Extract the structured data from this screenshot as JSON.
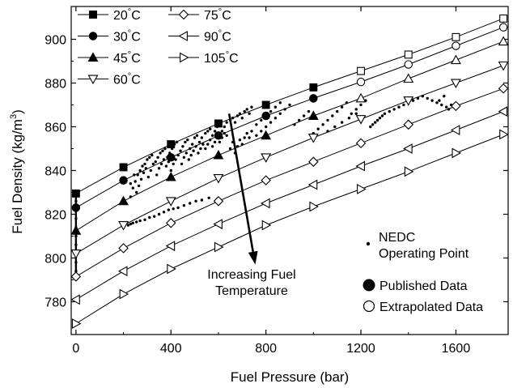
{
  "chart_data": {
    "type": "scatter",
    "xlabel": "Fuel Pressure (bar)",
    "ylabel_main": "Fuel Density (kg/m",
    "ylabel_sup": "3",
    "ylabel_end": ")",
    "xlim": [
      -20,
      1820
    ],
    "ylim": [
      765,
      915
    ],
    "xticks": [
      0,
      400,
      800,
      1200,
      1600
    ],
    "yticks": [
      780,
      800,
      820,
      840,
      860,
      880,
      900
    ],
    "xtick_labels": [
      "0",
      "400",
      "800",
      "1200",
      "1600"
    ],
    "ytick_labels": [
      "780",
      "800",
      "820",
      "840",
      "860",
      "880",
      "900"
    ],
    "legend": [
      {
        "label": "20°C",
        "marker": "square"
      },
      {
        "label": "30°C",
        "marker": "circle"
      },
      {
        "label": "45°C",
        "marker": "triangle-up"
      },
      {
        "label": "60°C",
        "marker": "triangle-down"
      },
      {
        "label": "75°C",
        "marker": "diamond"
      },
      {
        "label": "90°C",
        "marker": "triangle-left"
      },
      {
        "label": "105°C",
        "marker": "triangle-right"
      }
    ],
    "series": [
      {
        "name": "20°C",
        "marker": "square",
        "x": [
          0,
          200,
          400,
          600,
          800,
          1000,
          1200,
          1400,
          1600,
          1800
        ],
        "y": [
          829.5,
          841.5,
          852,
          861.5,
          870,
          878,
          885.5,
          893,
          901,
          909.5
        ],
        "published_until": 1000
      },
      {
        "name": "30°C",
        "marker": "circle",
        "x": [
          0,
          200,
          400,
          600,
          800,
          1000,
          1200,
          1400,
          1600,
          1800
        ],
        "y": [
          823,
          835.5,
          846,
          856,
          865,
          873,
          880.5,
          888.5,
          897,
          905.5
        ],
        "published_until": 1000
      },
      {
        "name": "45°C",
        "marker": "triangle-up",
        "x": [
          0,
          200,
          400,
          600,
          800,
          1000,
          1200,
          1400,
          1600,
          1800
        ],
        "y": [
          812.5,
          826,
          837,
          847,
          856,
          865,
          873,
          882,
          890.5,
          899
        ],
        "published_until": 1000
      },
      {
        "name": "60°C",
        "marker": "triangle-down",
        "x": [
          0,
          200,
          400,
          600,
          800,
          1000,
          1200,
          1400,
          1600,
          1800
        ],
        "y": [
          802,
          815,
          826,
          836.5,
          846,
          855,
          863.5,
          872,
          880,
          888
        ],
        "published_until": 0
      },
      {
        "name": "75°C",
        "marker": "diamond",
        "x": [
          0,
          200,
          400,
          600,
          800,
          1000,
          1200,
          1400,
          1600,
          1800
        ],
        "y": [
          791.5,
          804.5,
          816,
          826,
          835.5,
          844,
          852.5,
          861,
          869.5,
          877.5
        ],
        "published_until": 0
      },
      {
        "name": "90°C",
        "marker": "triangle-left",
        "x": [
          0,
          200,
          400,
          600,
          800,
          1000,
          1200,
          1400,
          1600,
          1800
        ],
        "y": [
          781,
          794,
          805.5,
          815.5,
          825,
          833.5,
          842,
          850,
          858.5,
          867
        ],
        "published_until": 0
      },
      {
        "name": "105°C",
        "marker": "triangle-right",
        "x": [
          0,
          200,
          400,
          600,
          800,
          1000,
          1200,
          1400,
          1600,
          1800
        ],
        "y": [
          770,
          783.5,
          795,
          805,
          815,
          823.5,
          831.5,
          839.5,
          848,
          856.5
        ],
        "published_until": 0
      }
    ],
    "nedc_points": [
      [
        0,
        829
      ],
      [
        0,
        826
      ],
      [
        0,
        822
      ],
      [
        0,
        818
      ],
      [
        0,
        814
      ],
      [
        0,
        810
      ],
      [
        0,
        806
      ],
      [
        0,
        802
      ],
      [
        0,
        798
      ],
      [
        0,
        794
      ],
      [
        0,
        791
      ],
      [
        220,
        815
      ],
      [
        230,
        815.5
      ],
      [
        240,
        816
      ],
      [
        255,
        816.5
      ],
      [
        270,
        817
      ],
      [
        290,
        817.5
      ],
      [
        310,
        818.5
      ],
      [
        330,
        819
      ],
      [
        350,
        820
      ],
      [
        370,
        821
      ],
      [
        390,
        822
      ],
      [
        410,
        822.5
      ],
      [
        430,
        823
      ],
      [
        455,
        824
      ],
      [
        480,
        825
      ],
      [
        505,
        826
      ],
      [
        530,
        826.5
      ],
      [
        560,
        827.5
      ],
      [
        230,
        828
      ],
      [
        240,
        832
      ],
      [
        250,
        835
      ],
      [
        260,
        838
      ],
      [
        270,
        840
      ],
      [
        280,
        842
      ],
      [
        290,
        843
      ],
      [
        300,
        845
      ],
      [
        310,
        846
      ],
      [
        320,
        847
      ],
      [
        230,
        834
      ],
      [
        245,
        838
      ],
      [
        255,
        830
      ],
      [
        265,
        833
      ],
      [
        275,
        836
      ],
      [
        285,
        839
      ],
      [
        295,
        841
      ],
      [
        305,
        837
      ],
      [
        315,
        840
      ],
      [
        325,
        843
      ],
      [
        335,
        844
      ],
      [
        345,
        846
      ],
      [
        355,
        848
      ],
      [
        365,
        849
      ],
      [
        375,
        850
      ],
      [
        385,
        846
      ],
      [
        395,
        848
      ],
      [
        405,
        850
      ],
      [
        415,
        852
      ],
      [
        425,
        853
      ],
      [
        340,
        838
      ],
      [
        350,
        841
      ],
      [
        360,
        843
      ],
      [
        370,
        845
      ],
      [
        380,
        842
      ],
      [
        390,
        844
      ],
      [
        400,
        840
      ],
      [
        410,
        843
      ],
      [
        420,
        845
      ],
      [
        430,
        847
      ],
      [
        440,
        849
      ],
      [
        450,
        851
      ],
      [
        460,
        853
      ],
      [
        470,
        854
      ],
      [
        480,
        850
      ],
      [
        490,
        852
      ],
      [
        500,
        855
      ],
      [
        510,
        856
      ],
      [
        520,
        853
      ],
      [
        530,
        855
      ],
      [
        445,
        843
      ],
      [
        455,
        846
      ],
      [
        465,
        848
      ],
      [
        475,
        845
      ],
      [
        485,
        847
      ],
      [
        495,
        849
      ],
      [
        505,
        851
      ],
      [
        515,
        848
      ],
      [
        525,
        850
      ],
      [
        535,
        852
      ],
      [
        545,
        857
      ],
      [
        555,
        858
      ],
      [
        565,
        859
      ],
      [
        575,
        856
      ],
      [
        585,
        858
      ],
      [
        595,
        860
      ],
      [
        605,
        861
      ],
      [
        615,
        858
      ],
      [
        625,
        860
      ],
      [
        635,
        862
      ],
      [
        545,
        850
      ],
      [
        555,
        852
      ],
      [
        565,
        854
      ],
      [
        575,
        851
      ],
      [
        585,
        853
      ],
      [
        595,
        855
      ],
      [
        605,
        853
      ],
      [
        615,
        855
      ],
      [
        625,
        857
      ],
      [
        635,
        856
      ],
      [
        650,
        863
      ],
      [
        660,
        864
      ],
      [
        670,
        862
      ],
      [
        680,
        865
      ],
      [
        690,
        866
      ],
      [
        700,
        864
      ],
      [
        710,
        867
      ],
      [
        720,
        868
      ],
      [
        730,
        866
      ],
      [
        740,
        869
      ],
      [
        650,
        850
      ],
      [
        660,
        853
      ],
      [
        670,
        848
      ],
      [
        680,
        851
      ],
      [
        690,
        854
      ],
      [
        700,
        852
      ],
      [
        710,
        855
      ],
      [
        720,
        857
      ],
      [
        730,
        855
      ],
      [
        740,
        858
      ],
      [
        760,
        861
      ],
      [
        780,
        863
      ],
      [
        800,
        865
      ],
      [
        820,
        867
      ],
      [
        840,
        869
      ],
      [
        860,
        871
      ],
      [
        760,
        856
      ],
      [
        780,
        858
      ],
      [
        800,
        860
      ],
      [
        820,
        862
      ],
      [
        840,
        864
      ],
      [
        860,
        866
      ],
      [
        880,
        868
      ],
      [
        900,
        870
      ],
      [
        920,
        861
      ],
      [
        940,
        863
      ],
      [
        960,
        865
      ],
      [
        980,
        867
      ],
      [
        1000,
        857
      ],
      [
        1020,
        859
      ],
      [
        1040,
        861
      ],
      [
        1060,
        863
      ],
      [
        1080,
        865
      ],
      [
        1100,
        867
      ],
      [
        1120,
        869
      ],
      [
        1140,
        871
      ],
      [
        1160,
        866
      ],
      [
        1180,
        868
      ],
      [
        1200,
        870
      ],
      [
        1220,
        872
      ],
      [
        1060,
        858
      ],
      [
        1090,
        860
      ],
      [
        1120,
        862
      ],
      [
        1150,
        864
      ],
      [
        1180,
        866
      ],
      [
        1240,
        860
      ],
      [
        1250,
        861
      ],
      [
        1260,
        862
      ],
      [
        1270,
        863
      ],
      [
        1280,
        864
      ],
      [
        1290,
        865
      ],
      [
        1300,
        866
      ],
      [
        1320,
        867
      ],
      [
        1340,
        868
      ],
      [
        1360,
        869
      ],
      [
        1380,
        870
      ],
      [
        1400,
        871
      ],
      [
        1420,
        872
      ],
      [
        1440,
        873
      ],
      [
        1460,
        874
      ],
      [
        1480,
        873
      ],
      [
        1500,
        872
      ],
      [
        1520,
        871
      ],
      [
        1540,
        870
      ],
      [
        1560,
        869
      ],
      [
        1580,
        870
      ],
      [
        1600,
        869
      ],
      [
        1550,
        874
      ],
      [
        1530,
        872
      ],
      [
        1570,
        868
      ]
    ],
    "annotations": {
      "arrow_label_line1": "Increasing Fuel",
      "arrow_label_line2": "Temperature",
      "arrow": {
        "from": [
          645,
          866
        ],
        "to": [
          755,
          797
        ]
      }
    },
    "side_legend": {
      "nedc_label_line1": "NEDC",
      "nedc_label_line2": "Operating Point",
      "published_label": "Published Data",
      "extrapolated_label": "Extrapolated Data"
    }
  }
}
